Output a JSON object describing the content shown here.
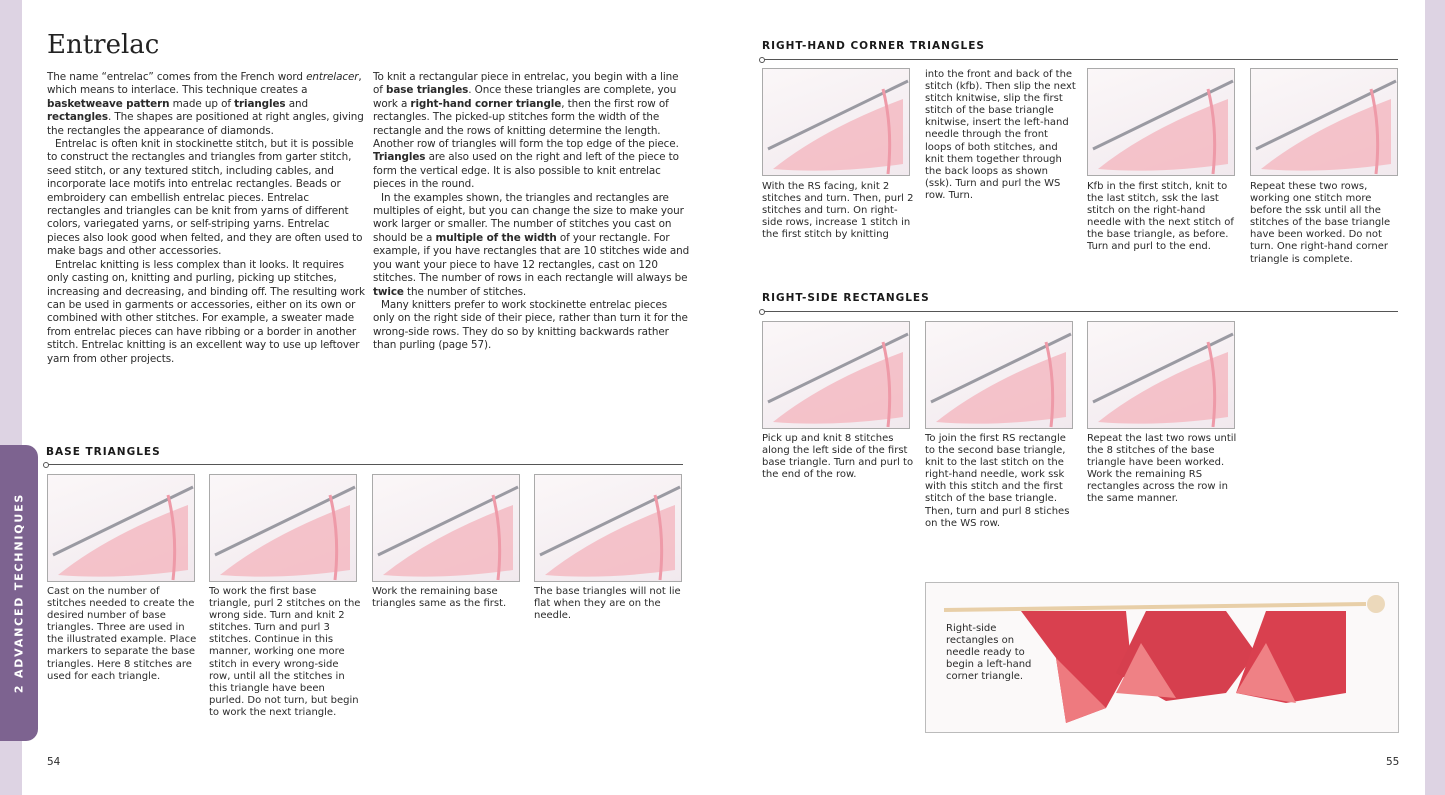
{
  "title": "Entrelac",
  "side_tab": "2  ADVANCED TECHNIQUES",
  "col1": [
    [
      {
        "t": "The name “entrelac” comes from the French word "
      },
      {
        "t": "entrelacer",
        "i": 1
      },
      {
        "t": ", which means to interlace. This technique creates a "
      },
      {
        "t": "basketweave pattern",
        "b": 1
      },
      {
        "t": " made up of "
      },
      {
        "t": "triangles",
        "b": 1
      },
      {
        "t": " and "
      },
      {
        "t": "rectangles",
        "b": 1
      },
      {
        "t": ". The shapes are positioned at right angles, giving the rectangles the appearance of diamonds."
      }
    ],
    [
      {
        "t": "Entrelac is often knit in stockinette stitch, but it is possible to construct the rectangles and triangles from garter stitch, seed stitch, or any textured stitch, including cables, and incorporate lace motifs into entrelac rectangles. Beads or embroidery can embellish entrelac pieces. Entrelac rectangles and triangles can be knit from yarns of different colors, variegated yarns, or self-striping yarns. Entrelac pieces also look good when felted, and they are often used to make bags and other accessories."
      }
    ],
    [
      {
        "t": "Entrelac knitting is less complex than it looks. It requires only casting on, knitting and purling, picking up stitches, increasing and decreasing, and binding off. The resulting work can be used in garments or accessories, either on its own or combined with other stitches. For example, a sweater made from entrelac pieces can have ribbing or a border in another stitch. Entrelac knitting is an excellent way to use up leftover yarn from other projects."
      }
    ]
  ],
  "col2": [
    [
      {
        "t": "To knit a rectangular piece in entrelac, you begin with a line of "
      },
      {
        "t": "base triangles",
        "b": 1
      },
      {
        "t": ". Once these triangles are complete, you work a "
      },
      {
        "t": "right-hand corner triangle",
        "b": 1
      },
      {
        "t": ", then the first row of rectangles. The picked-up stitches form the width of the rectangle and the rows of knitting determine the length. Another row of triangles will form the top edge of the piece. "
      },
      {
        "t": "Triangles",
        "b": 1
      },
      {
        "t": " are also used on the right and left of the piece to form the vertical edge. It is also possible to knit entrelac pieces in the round."
      }
    ],
    [
      {
        "t": "In the examples shown, the triangles and rectangles are multiples of eight, but you can change the size to make your work larger or smaller. The number of stitches you cast on should be a "
      },
      {
        "t": "multiple of the width",
        "b": 1
      },
      {
        "t": " of your rectangle. For example, if you have rectangles that are 10 stitches wide and you want your piece to have 12 rectangles, cast on 120 stitches. The number of rows in each rectangle will always be "
      },
      {
        "t": "twice",
        "b": 1
      },
      {
        "t": " the number of stitches."
      }
    ],
    [
      {
        "t": "Many knitters prefer to work stockinette entrelac pieces only on the right side of their piece, rather than turn it for the wrong-side rows. They do so by knitting backwards rather than purling (page 57)."
      }
    ]
  ],
  "base_triangles": {
    "heading": "BASE TRIANGLES",
    "captions": [
      "Cast on the number of stitches needed to create the desired number of base triangles. Three are used in the illustrated example. Place markers to separate the base triangles. Here 8 stitches are used for each triangle.",
      "To work the first base triangle, purl 2 stitches on the wrong side. Turn and knit 2 stitches. Turn and purl 3 stitches. Continue in this manner, working one more stitch in every wrong-side row, until all the stitches in this triangle have been purled. Do not turn, but begin to work the next triangle.",
      "Work the remaining base triangles same as the first.",
      "The base triangles will not lie flat when they are on the needle."
    ]
  },
  "corner_triangles": {
    "heading": "RIGHT-HAND CORNER TRIANGLES",
    "captions": [
      "With the RS facing, knit 2 stitches and turn. Then, purl 2 stitches and turn. On right-side rows, increase 1 stitch in the first stitch by knitting",
      "into the front and back of the stitch (kfb). Then slip the next stitch knitwise, slip the first stitch of the base triangle knitwise, insert the left-hand needle through the front loops of both stitches, and knit them together through the back loops as shown (ssk). Turn and purl the WS row. Turn.",
      "Kfb in the first stitch, knit to the last stitch, ssk the last stitch on the right-hand needle with the next stitch of the base triangle, as before. Turn and purl to the end.",
      "Repeat these two rows, working one stitch more before the ssk until all the stitches of the base triangle have been worked. Do not turn. One right-hand corner triangle is complete."
    ]
  },
  "rectangles": {
    "heading": "RIGHT-SIDE RECTANGLES",
    "captions": [
      "Pick up and knit 8 stitches along the left side of the first base triangle. Turn and purl to the end of the row.",
      "To join the first RS rectangle to the second base triangle, knit to the last stitch on the right-hand needle, work ssk with this stitch and the first stitch of the base triangle. Then, turn and purl 8 stiches on the WS row.",
      "Repeat the last two rows until the 8 stitches of the base triangle have been worked. Work the remaining RS rectangles across the row in the same manner."
    ]
  },
  "photo_caption": "Right-side rectangles on needle ready to begin a left-hand corner triangle.",
  "page_left": "54",
  "page_right": "55",
  "colors": {
    "accent": "#7d6390",
    "yarn": "#ee9aa8",
    "photo_yarn": "#d9404f"
  }
}
